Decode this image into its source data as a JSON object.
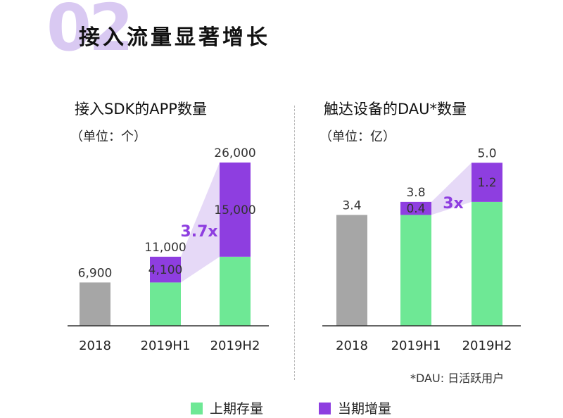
{
  "section": {
    "number": "02",
    "title": "接入流量显著增长"
  },
  "legend": [
    {
      "label": "上期存量",
      "color": "#6ee895"
    },
    {
      "label": "当期增量",
      "color": "#8e3ee0"
    }
  ],
  "footnote": "*DAU: 日活跃用户",
  "colors": {
    "baseline_bar": "#a6a6a6",
    "existing": "#6ee895",
    "increment": "#8e3ee0",
    "growth_band": "#e6d9f7",
    "growth_text": "#8e3ee0"
  },
  "chart_data": [
    {
      "type": "bar",
      "title": "接入SDK的APP数量",
      "subtitle": "（单位：个）",
      "categories": [
        "2018",
        "2019H1",
        "2019H2"
      ],
      "stacked": true,
      "ylim": [
        0,
        27000
      ],
      "series": [
        {
          "key": "base",
          "values": [
            6900,
            6900,
            11000
          ]
        },
        {
          "key": "increment",
          "values": [
            0,
            4100,
            15000
          ]
        }
      ],
      "totals": [
        6900,
        11000,
        26000
      ],
      "total_labels": [
        "6,900",
        "11,000",
        "26,000"
      ],
      "increment_labels": [
        "",
        "4,100",
        "15,000"
      ],
      "growth_label": "3.7x"
    },
    {
      "type": "bar",
      "title": "触达设备的DAU*数量",
      "subtitle": "（单位：亿）",
      "categories": [
        "2018",
        "2019H1",
        "2019H2"
      ],
      "stacked": true,
      "ylim": [
        0,
        5.2
      ],
      "series": [
        {
          "key": "base",
          "values": [
            3.4,
            3.4,
            3.8
          ]
        },
        {
          "key": "increment",
          "values": [
            0,
            0.4,
            1.2
          ]
        }
      ],
      "totals": [
        3.4,
        3.8,
        5.0
      ],
      "total_labels": [
        "3.4",
        "3.8",
        "5.0"
      ],
      "increment_labels": [
        "",
        "0.4",
        "1.2"
      ],
      "growth_label": "3x"
    }
  ]
}
